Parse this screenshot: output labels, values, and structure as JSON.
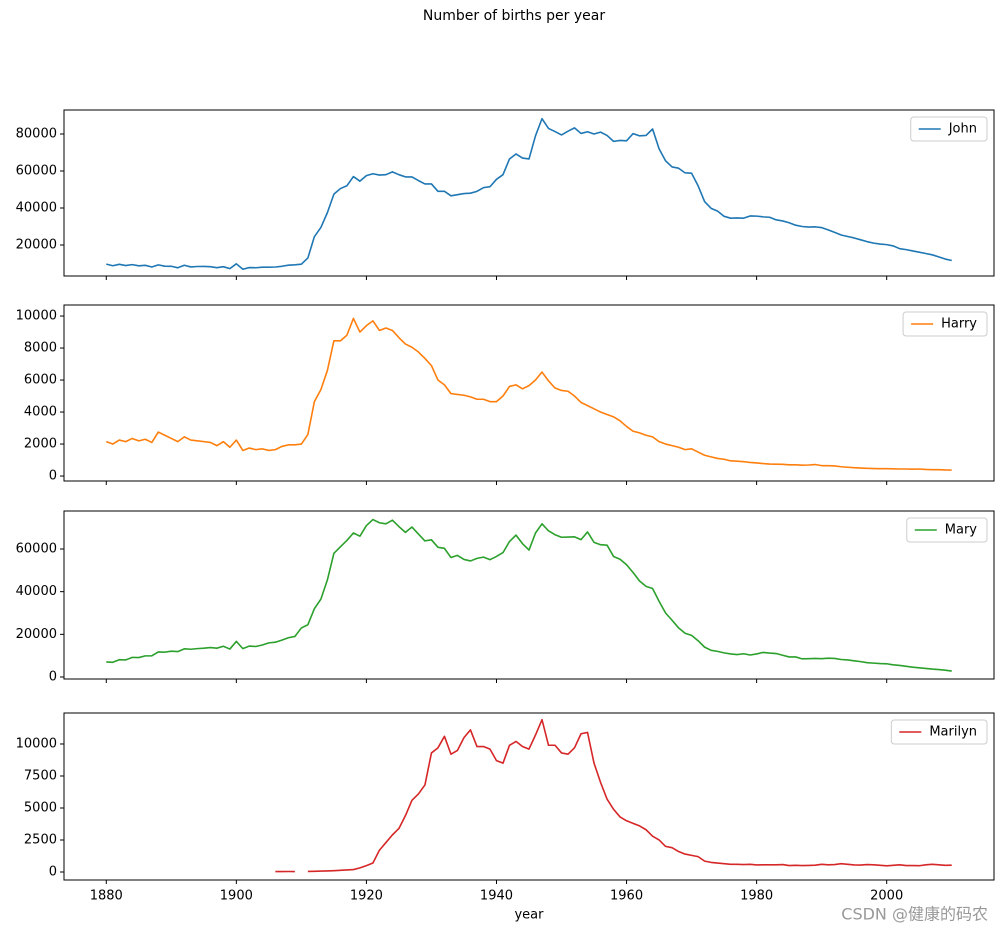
{
  "title": "Number of births per year",
  "watermark": "CSDN @健康的码农",
  "chart_data": [
    {
      "type": "line",
      "x": [
        1880,
        1881,
        1882,
        1883,
        1884,
        1885,
        1886,
        1887,
        1888,
        1889,
        1890,
        1891,
        1892,
        1893,
        1894,
        1895,
        1896,
        1897,
        1898,
        1899,
        1900,
        1901,
        1902,
        1903,
        1904,
        1905,
        1906,
        1907,
        1908,
        1909,
        1910,
        1911,
        1912,
        1913,
        1914,
        1915,
        1916,
        1917,
        1918,
        1919,
        1920,
        1921,
        1922,
        1923,
        1924,
        1925,
        1926,
        1927,
        1928,
        1929,
        1930,
        1931,
        1932,
        1933,
        1934,
        1935,
        1936,
        1937,
        1938,
        1939,
        1940,
        1941,
        1942,
        1943,
        1944,
        1945,
        1946,
        1947,
        1948,
        1949,
        1950,
        1951,
        1952,
        1953,
        1954,
        1955,
        1956,
        1957,
        1958,
        1959,
        1960,
        1961,
        1962,
        1963,
        1964,
        1965,
        1966,
        1967,
        1968,
        1969,
        1970,
        1971,
        1972,
        1973,
        1974,
        1975,
        1976,
        1977,
        1978,
        1979,
        1980,
        1981,
        1982,
        1983,
        1984,
        1985,
        1986,
        1987,
        1988,
        1989,
        1990,
        1991,
        1992,
        1993,
        1994,
        1995,
        1996,
        1997,
        1998,
        1999,
        2000,
        2001,
        2002,
        2003,
        2004,
        2005,
        2006,
        2007,
        2008,
        2009,
        2010
      ],
      "series": [
        {
          "name": "John",
          "color": "#1f77b4",
          "values": [
            9655,
            8769,
            9557,
            8894,
            9388,
            8756,
            9026,
            8110,
            9248,
            8548,
            8502,
            7680,
            9036,
            8148,
            8376,
            8431,
            8278,
            7736,
            8280,
            7208,
            9829,
            6900,
            7800,
            7700,
            8000,
            8000,
            8100,
            8500,
            9100,
            9300,
            9600,
            13000,
            24500,
            29500,
            37500,
            47500,
            50500,
            52000,
            57000,
            54500,
            57500,
            58500,
            57800,
            58000,
            59500,
            58000,
            56800,
            56800,
            54800,
            53000,
            53000,
            49000,
            49000,
            46600,
            47200,
            47800,
            48000,
            49000,
            51000,
            51500,
            55500,
            58000,
            66500,
            69200,
            67000,
            66500,
            79000,
            88300,
            83000,
            81300,
            79500,
            81500,
            83300,
            80300,
            81200,
            80000,
            81000,
            79200,
            76000,
            76500,
            76300,
            80200,
            79000,
            79200,
            82700,
            72000,
            65500,
            62200,
            61500,
            59000,
            58800,
            52000,
            43500,
            39800,
            38300,
            35500,
            34500,
            34600,
            34500,
            35700,
            35600,
            35200,
            35000,
            33600,
            33000,
            32000,
            30700,
            30000,
            29700,
            29800,
            29400,
            28200,
            26800,
            25400,
            24600,
            23800,
            22800,
            21800,
            21000,
            20500,
            20200,
            19500,
            18000,
            17500,
            16800,
            16100,
            15400,
            14700,
            13600,
            12400,
            11600
          ]
        }
      ],
      "xlim": [
        1873.5,
        2016.5
      ],
      "xticks": [
        1880,
        1900,
        1920,
        1940,
        1960,
        1980,
        2000
      ],
      "ylim": [
        3240,
        92970
      ],
      "yticks": [
        20000,
        40000,
        60000,
        80000
      ],
      "legend": "upper right"
    },
    {
      "type": "line",
      "x": [
        1880,
        1881,
        1882,
        1883,
        1884,
        1885,
        1886,
        1887,
        1888,
        1889,
        1890,
        1891,
        1892,
        1893,
        1894,
        1895,
        1896,
        1897,
        1898,
        1899,
        1900,
        1901,
        1902,
        1903,
        1904,
        1905,
        1906,
        1907,
        1908,
        1909,
        1910,
        1911,
        1912,
        1913,
        1914,
        1915,
        1916,
        1917,
        1918,
        1919,
        1920,
        1921,
        1922,
        1923,
        1924,
        1925,
        1926,
        1927,
        1928,
        1929,
        1930,
        1931,
        1932,
        1933,
        1934,
        1935,
        1936,
        1937,
        1938,
        1939,
        1940,
        1941,
        1942,
        1943,
        1944,
        1945,
        1946,
        1947,
        1948,
        1949,
        1950,
        1951,
        1952,
        1953,
        1954,
        1955,
        1956,
        1957,
        1958,
        1959,
        1960,
        1961,
        1962,
        1963,
        1964,
        1965,
        1966,
        1967,
        1968,
        1969,
        1970,
        1971,
        1972,
        1973,
        1974,
        1975,
        1976,
        1977,
        1978,
        1979,
        1980,
        1981,
        1982,
        1983,
        1984,
        1985,
        1986,
        1987,
        1988,
        1989,
        1990,
        1991,
        1992,
        1993,
        1994,
        1995,
        1996,
        1997,
        1998,
        1999,
        2000,
        2001,
        2002,
        2003,
        2004,
        2005,
        2006,
        2007,
        2008,
        2009,
        2010
      ],
      "series": [
        {
          "name": "Harry",
          "color": "#ff7f0e",
          "values": [
            2150,
            2000,
            2250,
            2150,
            2350,
            2200,
            2300,
            2100,
            2750,
            2550,
            2350,
            2150,
            2450,
            2250,
            2200,
            2150,
            2100,
            1900,
            2150,
            1800,
            2250,
            1600,
            1750,
            1650,
            1700,
            1600,
            1650,
            1850,
            1950,
            1950,
            2000,
            2600,
            4650,
            5400,
            6600,
            8450,
            8450,
            8800,
            9850,
            9000,
            9400,
            9700,
            9100,
            9250,
            9100,
            8650,
            8250,
            8050,
            7750,
            7350,
            6900,
            6000,
            5700,
            5150,
            5100,
            5050,
            4950,
            4800,
            4800,
            4650,
            4650,
            5000,
            5600,
            5700,
            5450,
            5650,
            6000,
            6500,
            5950,
            5500,
            5350,
            5300,
            5000,
            4600,
            4400,
            4200,
            4000,
            3850,
            3700,
            3450,
            3100,
            2800,
            2700,
            2550,
            2450,
            2150,
            2000,
            1900,
            1800,
            1650,
            1700,
            1500,
            1300,
            1200,
            1100,
            1050,
            950,
            930,
            900,
            850,
            820,
            780,
            750,
            740,
            730,
            700,
            700,
            680,
            690,
            720,
            650,
            650,
            630,
            580,
            550,
            520,
            500,
            480,
            470,
            460,
            460,
            450,
            440,
            440,
            430,
            440,
            410,
            400,
            400,
            380,
            370
          ]
        }
      ],
      "xlim": [
        1873.5,
        2016.5
      ],
      "xticks": [
        1880,
        1900,
        1920,
        1940,
        1960,
        1980,
        2000
      ],
      "ylim": [
        -310,
        10690
      ],
      "yticks": [
        0,
        2000,
        4000,
        6000,
        8000,
        10000
      ],
      "legend": "upper right"
    },
    {
      "type": "line",
      "x": [
        1880,
        1881,
        1882,
        1883,
        1884,
        1885,
        1886,
        1887,
        1888,
        1889,
        1890,
        1891,
        1892,
        1893,
        1894,
        1895,
        1896,
        1897,
        1898,
        1899,
        1900,
        1901,
        1902,
        1903,
        1904,
        1905,
        1906,
        1907,
        1908,
        1909,
        1910,
        1911,
        1912,
        1913,
        1914,
        1915,
        1916,
        1917,
        1918,
        1919,
        1920,
        1921,
        1922,
        1923,
        1924,
        1925,
        1926,
        1927,
        1928,
        1929,
        1930,
        1931,
        1932,
        1933,
        1934,
        1935,
        1936,
        1937,
        1938,
        1939,
        1940,
        1941,
        1942,
        1943,
        1944,
        1945,
        1946,
        1947,
        1948,
        1949,
        1950,
        1951,
        1952,
        1953,
        1954,
        1955,
        1956,
        1957,
        1958,
        1959,
        1960,
        1961,
        1962,
        1963,
        1964,
        1965,
        1966,
        1967,
        1968,
        1969,
        1970,
        1971,
        1972,
        1973,
        1974,
        1975,
        1976,
        1977,
        1978,
        1979,
        1980,
        1981,
        1982,
        1983,
        1984,
        1985,
        1986,
        1987,
        1988,
        1989,
        1990,
        1991,
        1992,
        1993,
        1994,
        1995,
        1996,
        1997,
        1998,
        1999,
        2000,
        2001,
        2002,
        2003,
        2004,
        2005,
        2006,
        2007,
        2008,
        2009,
        2010
      ],
      "series": [
        {
          "name": "Mary",
          "color": "#2ca02c",
          "values": [
            7065,
            6900,
            8100,
            8000,
            9200,
            9100,
            9900,
            9900,
            11750,
            11650,
            12100,
            11900,
            13200,
            13000,
            13300,
            13500,
            13800,
            13500,
            14400,
            13100,
            16700,
            13300,
            14500,
            14300,
            15000,
            16000,
            16300,
            17300,
            18400,
            19000,
            23000,
            24500,
            32000,
            36500,
            45500,
            58000,
            61000,
            64000,
            67500,
            66000,
            71000,
            73800,
            72300,
            71800,
            73500,
            70500,
            67800,
            70300,
            67000,
            63800,
            64300,
            60800,
            60300,
            56000,
            57000,
            55100,
            54400,
            55600,
            56200,
            55000,
            56500,
            58300,
            63500,
            66500,
            62500,
            59500,
            67500,
            71800,
            68500,
            66700,
            65500,
            65600,
            65700,
            64400,
            68000,
            63100,
            62000,
            61800,
            56500,
            55200,
            52600,
            49000,
            45000,
            42500,
            41500,
            35500,
            30000,
            26600,
            23000,
            20500,
            19500,
            17000,
            14000,
            12500,
            12000,
            11300,
            10800,
            10500,
            10900,
            10300,
            10800,
            11500,
            11200,
            11000,
            10200,
            9400,
            9400,
            8500,
            8600,
            8700,
            8600,
            8800,
            8700,
            8200,
            8000,
            7600,
            7200,
            6700,
            6500,
            6300,
            6200,
            5700,
            5400,
            5000,
            4600,
            4300,
            4000,
            3700,
            3500,
            3200,
            2800
          ]
        }
      ],
      "xlim": [
        1873.5,
        2016.5
      ],
      "xticks": [
        1880,
        1900,
        1920,
        1940,
        1960,
        1980,
        2000
      ],
      "ylim": [
        -940,
        77810
      ],
      "yticks": [
        0,
        20000,
        40000,
        60000
      ],
      "legend": "upper right"
    },
    {
      "type": "line",
      "xlabel": "year",
      "x": [
        1880,
        1881,
        1882,
        1883,
        1884,
        1885,
        1886,
        1887,
        1888,
        1889,
        1890,
        1891,
        1892,
        1893,
        1894,
        1895,
        1896,
        1897,
        1898,
        1899,
        1900,
        1901,
        1902,
        1903,
        1904,
        1905,
        1906,
        1907,
        1908,
        1909,
        1910,
        1911,
        1912,
        1913,
        1914,
        1915,
        1916,
        1917,
        1918,
        1919,
        1920,
        1921,
        1922,
        1923,
        1924,
        1925,
        1926,
        1927,
        1928,
        1929,
        1930,
        1931,
        1932,
        1933,
        1934,
        1935,
        1936,
        1937,
        1938,
        1939,
        1940,
        1941,
        1942,
        1943,
        1944,
        1945,
        1946,
        1947,
        1948,
        1949,
        1950,
        1951,
        1952,
        1953,
        1954,
        1955,
        1956,
        1957,
        1958,
        1959,
        1960,
        1961,
        1962,
        1963,
        1964,
        1965,
        1966,
        1967,
        1968,
        1969,
        1970,
        1971,
        1972,
        1973,
        1974,
        1975,
        1976,
        1977,
        1978,
        1979,
        1980,
        1981,
        1982,
        1983,
        1984,
        1985,
        1986,
        1987,
        1988,
        1989,
        1990,
        1991,
        1992,
        1993,
        1994,
        1995,
        1996,
        1997,
        1998,
        1999,
        2000,
        2001,
        2002,
        2003,
        2004,
        2005,
        2006,
        2007,
        2008,
        2009,
        2010
      ],
      "series": [
        {
          "name": "Marilyn",
          "color": "#d62728",
          "values": [
            null,
            null,
            null,
            null,
            null,
            null,
            null,
            null,
            null,
            null,
            null,
            null,
            null,
            null,
            null,
            null,
            null,
            null,
            null,
            null,
            null,
            null,
            null,
            null,
            null,
            null,
            36,
            36,
            38,
            34,
            null,
            45,
            56,
            73,
            84,
            105,
            130,
            160,
            190,
            320,
            500,
            700,
            1700,
            2300,
            2900,
            3400,
            4400,
            5600,
            6100,
            6800,
            9300,
            9700,
            10600,
            9200,
            9500,
            10500,
            11100,
            9800,
            9800,
            9600,
            8700,
            8500,
            9900,
            10200,
            9800,
            9600,
            10700,
            11900,
            9900,
            9900,
            9300,
            9200,
            9700,
            10800,
            10900,
            8500,
            7000,
            5700,
            4900,
            4300,
            4000,
            3800,
            3600,
            3300,
            2800,
            2500,
            2000,
            1900,
            1600,
            1400,
            1300,
            1200,
            850,
            750,
            700,
            650,
            600,
            600,
            580,
            600,
            550,
            560,
            560,
            560,
            580,
            500,
            520,
            500,
            510,
            530,
            600,
            560,
            580,
            650,
            600,
            550,
            540,
            580,
            560,
            520,
            480,
            520,
            560,
            500,
            500,
            490,
            560,
            600,
            560,
            520,
            530
          ]
        }
      ],
      "xlim": [
        1873.5,
        2016.5
      ],
      "xticks": [
        1880,
        1900,
        1920,
        1940,
        1960,
        1980,
        2000
      ],
      "ylim": [
        -625,
        12420
      ],
      "yticks": [
        0,
        2500,
        5000,
        7500,
        10000
      ],
      "legend": "upper right"
    }
  ]
}
